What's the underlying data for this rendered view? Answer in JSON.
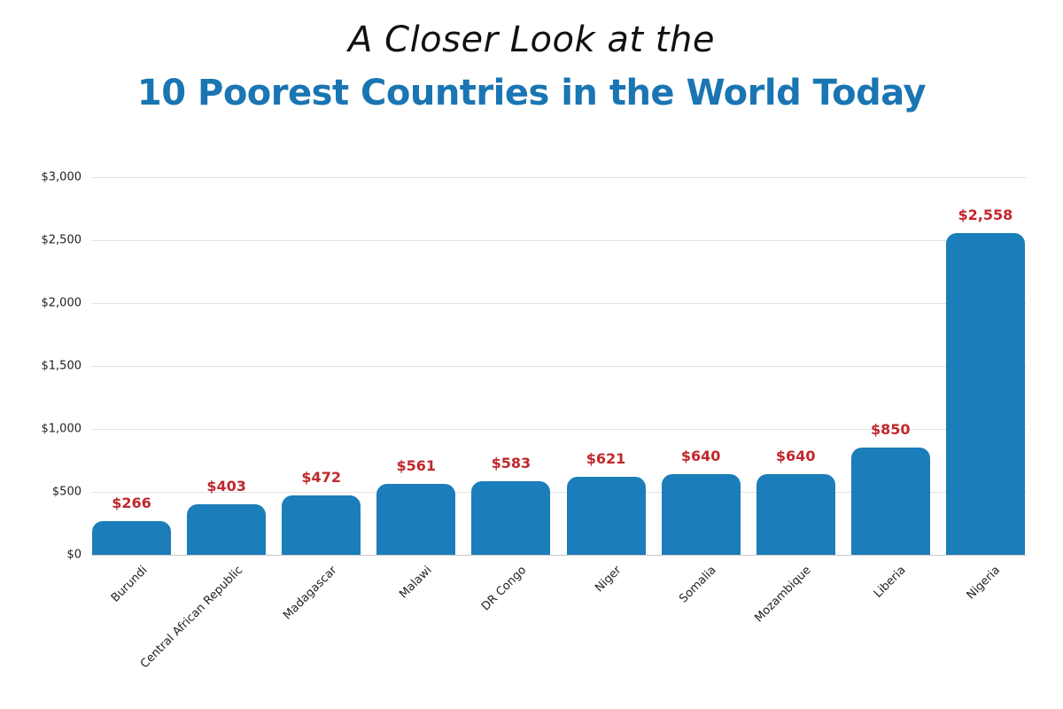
{
  "title": {
    "line1": "A Closer Look at the",
    "line2": "10 Poorest Countries in the World Today"
  },
  "colors": {
    "title_line1": "#111111",
    "title_line2": "#1a75b3",
    "bar": "#1b7dba",
    "value_label": "#c0282d",
    "gridline": "#e2e2e2",
    "axis_text": "#222222"
  },
  "chart_data": {
    "type": "bar",
    "title": "A Closer Look at the 10 Poorest Countries in the World Today",
    "xlabel": "",
    "ylabel": "",
    "categories": [
      "Burundi",
      "Central African Republic",
      "Madagascar",
      "Malawi",
      "DR Congo",
      "Niger",
      "Somalia",
      "Mozambique",
      "Liberia",
      "Nigeria"
    ],
    "values": [
      266,
      403,
      472,
      561,
      583,
      621,
      640,
      640,
      850,
      2558
    ],
    "value_labels": [
      "$266",
      "$403",
      "$472",
      "$561",
      "$583",
      "$621",
      "$640",
      "$640",
      "$850",
      "$2,558"
    ],
    "ylim": [
      0,
      3000
    ],
    "yticks": [
      0,
      500,
      1000,
      1500,
      2000,
      2500,
      3000
    ],
    "ytick_labels": [
      "$0",
      "$500",
      "$1,000",
      "$1,500",
      "$2,000",
      "$2,500",
      "$3,000"
    ],
    "grid": true,
    "legend": null
  }
}
